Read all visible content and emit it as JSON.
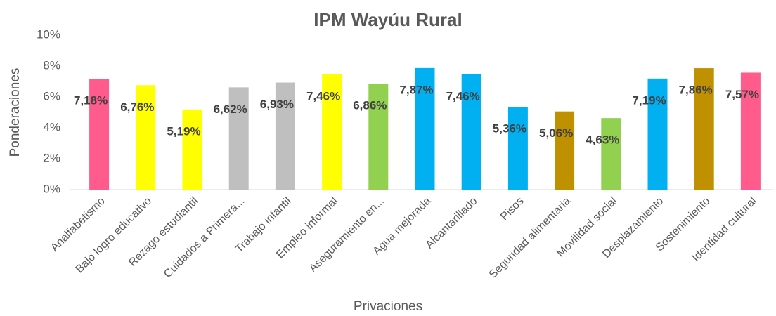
{
  "chart_data": {
    "type": "bar",
    "title": "IPM Wayúu Rural",
    "x_label": "Privaciones",
    "y_label": "Ponderaciones",
    "categories": [
      "Analfabetismo",
      "Bajo logro educativo",
      "Rezago estudiantil",
      "Cuidados a Primera...",
      "Trabajo infantil",
      "Empleo informal",
      "Aseguramiento en...",
      "Agua mejorada",
      "Alcantarillado",
      "Pisos",
      "Seguridad alimentaria",
      "Movilidad social",
      "Desplazamiento",
      "Sostenimiento",
      "Identidad cultural"
    ],
    "values": [
      7.18,
      6.76,
      5.19,
      6.62,
      6.93,
      7.46,
      6.86,
      7.87,
      7.46,
      5.36,
      5.06,
      4.63,
      7.19,
      7.86,
      7.57
    ],
    "value_labels": [
      "7,18%",
      "6,76%",
      "5,19%",
      "6,62%",
      "6,93%",
      "7,46%",
      "6,86%",
      "7,87%",
      "7,46%",
      "5,36%",
      "5,06%",
      "4,63%",
      "7,19%",
      "7,86%",
      "7,57%"
    ],
    "colors": [
      "#ff5b8c",
      "#ffff00",
      "#ffff00",
      "#bfbfbf",
      "#bfbfbf",
      "#ffff00",
      "#92d050",
      "#00b0f0",
      "#00b0f0",
      "#00b0f0",
      "#bf9000",
      "#92d050",
      "#00b0f0",
      "#bf9000",
      "#ff5b8c"
    ],
    "ylim": [
      0,
      10
    ],
    "yticks": [
      {
        "value": 0,
        "label": "0%"
      },
      {
        "value": 2,
        "label": "2%"
      },
      {
        "value": 4,
        "label": "4%"
      },
      {
        "value": 6,
        "label": "6%"
      },
      {
        "value": 8,
        "label": "8%"
      },
      {
        "value": 10,
        "label": "10%"
      }
    ],
    "grid": false
  }
}
